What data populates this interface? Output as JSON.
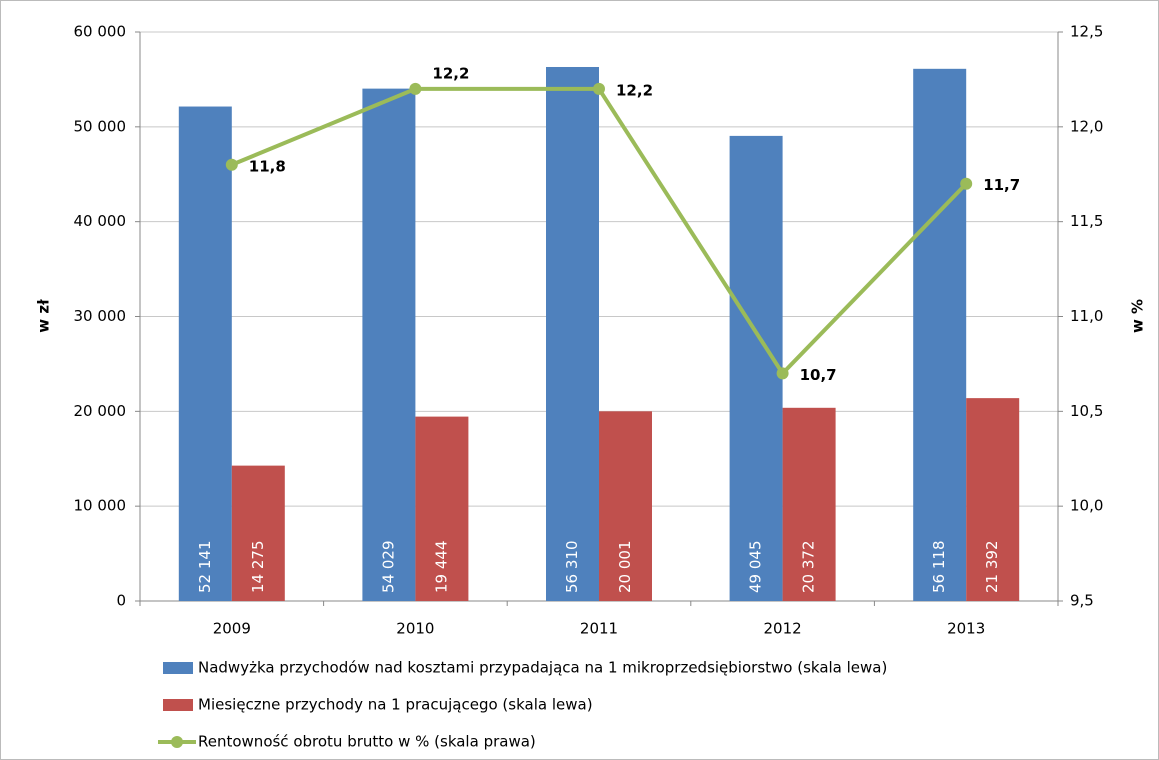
{
  "chart_data": {
    "type": "bar_line",
    "categories": [
      "2009",
      "2010",
      "2011",
      "2012",
      "2013"
    ],
    "y_label": "w zł",
    "y2_label": "w %",
    "series": [
      {
        "name": "Nadwyżka przychodów nad kosztami przypadająca na 1 mikroprzedsiębiorstwo (skala lewa)",
        "type": "bar",
        "color": "#4f81bd",
        "values": [
          52141,
          54029,
          56310,
          49045,
          56118
        ],
        "value_labels": [
          "52 141",
          "54 029",
          "56 310",
          "49 045",
          "56 118"
        ]
      },
      {
        "name": "Miesięczne przychody na 1 pracującego (skala lewa)",
        "type": "bar",
        "color": "#c0504d",
        "values": [
          14275,
          19444,
          20001,
          20372,
          21392
        ],
        "value_labels": [
          "14 275",
          "19 444",
          "20 001",
          "20 372",
          "21 392"
        ]
      },
      {
        "name": "Rentowność obrotu brutto w % (skala prawa)",
        "type": "line",
        "axis": "y2",
        "color": "#9bbb59",
        "values": [
          11.8,
          12.2,
          12.2,
          10.7,
          11.7
        ],
        "value_labels": [
          "11,8",
          "12,2",
          "12,2",
          "10,7",
          "11,7"
        ]
      }
    ],
    "ylim": [
      0,
      60000
    ],
    "yticks": [
      0,
      {
        "value": 10000,
        "label": "10 000"
      },
      {
        "value": 20000,
        "label": "20 000"
      },
      {
        "value": 30000,
        "label": "30 000"
      },
      {
        "value": 40000,
        "label": "40 000"
      },
      {
        "value": 50000,
        "label": "50 000"
      },
      {
        "value": 60000,
        "label": "60 000"
      }
    ],
    "y2lim": [
      9.5,
      12.5
    ],
    "y2ticks": [
      {
        "value": 9.5,
        "label": "9,5"
      },
      {
        "value": 10,
        "label": "10,0"
      },
      {
        "value": 10.5,
        "label": "10,5"
      },
      {
        "value": 11,
        "label": "11,0"
      },
      {
        "value": 11.5,
        "label": "11,5"
      },
      {
        "value": 12,
        "label": "12,0"
      },
      {
        "value": 12.5,
        "label": "12,5"
      }
    ],
    "grid": true
  }
}
